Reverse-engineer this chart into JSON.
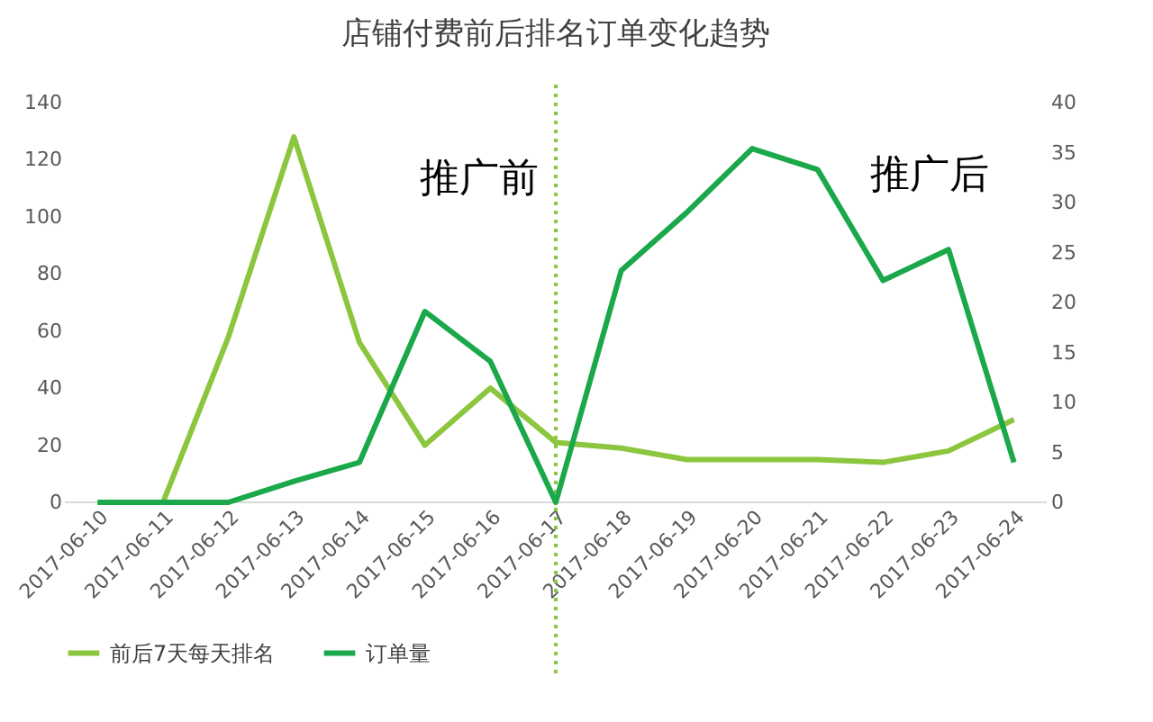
{
  "chart_data": {
    "type": "line",
    "title": "店铺付费前后排名订单变化趋势",
    "categories": [
      "2017-06-10",
      "2017-06-11",
      "2017-06-12",
      "2017-06-13",
      "2017-06-14",
      "2017-06-15",
      "2017-06-16",
      "2017-06-17",
      "2017-06-18",
      "2017-06-19",
      "2017-06-20",
      "2017-06-21",
      "2017-06-22",
      "2017-06-23",
      "2017-06-24"
    ],
    "series": [
      {
        "name": "前后7天每天排名",
        "color": "#8cc63f",
        "values": [
          0,
          0,
          58,
          128,
          56,
          20,
          40,
          21,
          19,
          15,
          15,
          15,
          14,
          18,
          29
        ]
      },
      {
        "name": "订单量",
        "color": "#1aa84a",
        "axis": "y2",
        "values": [
          0,
          0,
          0,
          2.1,
          4,
          19.1,
          14.1,
          0,
          23.2,
          29,
          35.4,
          33.3,
          22.2,
          25.3,
          4
        ]
      }
    ],
    "ylim": [
      0,
      140
    ],
    "yticks": [
      0,
      20,
      40,
      60,
      80,
      100,
      120,
      140
    ],
    "y2lim": [
      0,
      40
    ],
    "y2ticks": [
      0,
      5,
      10,
      15,
      20,
      25,
      30,
      35,
      40
    ],
    "ref_lines": [
      {
        "axis": "x",
        "value": "2017-06-17",
        "color": "#8cc63f",
        "line_style": "dotted"
      }
    ],
    "annotations": [
      "推广前",
      "推广后"
    ],
    "grid": false,
    "legend": "bottom"
  }
}
